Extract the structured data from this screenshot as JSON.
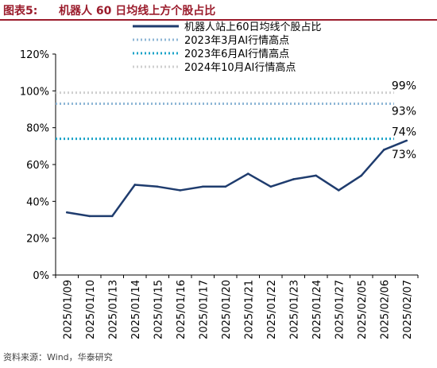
{
  "header": {
    "figure_label": "图表5:",
    "title": "机器人 60 日均线上方个股占比"
  },
  "source": "资料来源：Wind，华泰研究",
  "chart_data": {
    "type": "line",
    "categories": [
      "2025/01/09",
      "2025/01/10",
      "2025/01/13",
      "2025/01/14",
      "2025/01/15",
      "2025/01/16",
      "2025/01/17",
      "2025/01/20",
      "2025/01/21",
      "2025/01/22",
      "2025/01/23",
      "2025/01/24",
      "2025/01/27",
      "2025/02/05",
      "2025/02/06",
      "2025/02/07"
    ],
    "series": [
      {
        "name": "机器人站上60日均线个股占比",
        "values": [
          34,
          32,
          32,
          49,
          48,
          46,
          48,
          48,
          55,
          48,
          52,
          54,
          46,
          54,
          68,
          73
        ],
        "color": "#1f3c6e",
        "style": "solid"
      }
    ],
    "reference_lines": [
      {
        "name": "2023年3月AI行情高点",
        "value": 93,
        "label": "93%",
        "color": "#8fb7d6",
        "style": "dotted"
      },
      {
        "name": "2023年6月AI行情高点",
        "value": 74,
        "label": "74%",
        "color": "#1aa3c8",
        "style": "dotted"
      },
      {
        "name": "2024年10月AI行情高点",
        "value": 99,
        "label": "99%",
        "color": "#cfcfcf",
        "style": "dotted"
      }
    ],
    "end_label": "73%",
    "yticks": [
      "0%",
      "20%",
      "40%",
      "60%",
      "80%",
      "100%",
      "120%"
    ],
    "ytick_values": [
      0,
      20,
      40,
      60,
      80,
      100,
      120
    ],
    "ylim": [
      0,
      120
    ],
    "grid": false,
    "legend_position": "top"
  }
}
